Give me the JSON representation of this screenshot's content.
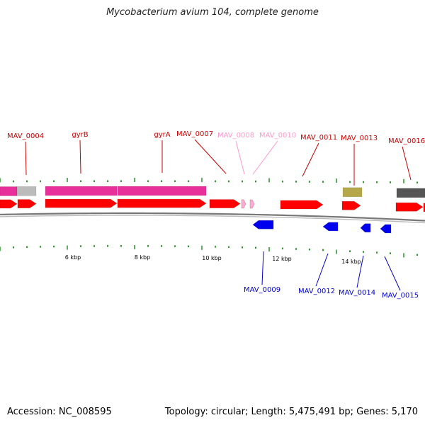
{
  "title": "Mycobacterium avium 104, complete genome",
  "footer": {
    "accession": "Accession: NC_008595",
    "stats": "Topology: circular; Length: 5,475,491 bp; Genes: 5,170"
  },
  "colors": {
    "forward_gene": "#ff0000",
    "reverse_gene": "#0000ee",
    "forward_label": "#cc0000",
    "reverse_label": "#0000cc",
    "faded_gene": "#ffaad4",
    "faded_label": "#ff99cc",
    "rna_bar": "#e8309a",
    "backbone": "#777777",
    "tick": "#1a8a1a",
    "grey_feature": "#bbbbbb",
    "olive_feature": "#b5a84a",
    "dark_feature": "#555555"
  },
  "scale_labels": [
    "6 kbp",
    "8 kbp",
    "10 kbp",
    "12 kbp",
    "14 kbp"
  ],
  "forward_genes": [
    {
      "name": "MAV_0004",
      "faded": false
    },
    {
      "name": "gyrB",
      "faded": false
    },
    {
      "name": "gyrA",
      "faded": false
    },
    {
      "name": "MAV_0007",
      "faded": false
    },
    {
      "name": "MAV_0008",
      "faded": true
    },
    {
      "name": "MAV_0010",
      "faded": true
    },
    {
      "name": "MAV_0011",
      "faded": false
    },
    {
      "name": "MAV_0013",
      "faded": false
    },
    {
      "name": "MAV_0016",
      "faded": false
    }
  ],
  "reverse_genes": [
    {
      "name": "MAV_0009"
    },
    {
      "name": "MAV_0012"
    },
    {
      "name": "MAV_0014"
    },
    {
      "name": "MAV_0015"
    }
  ]
}
